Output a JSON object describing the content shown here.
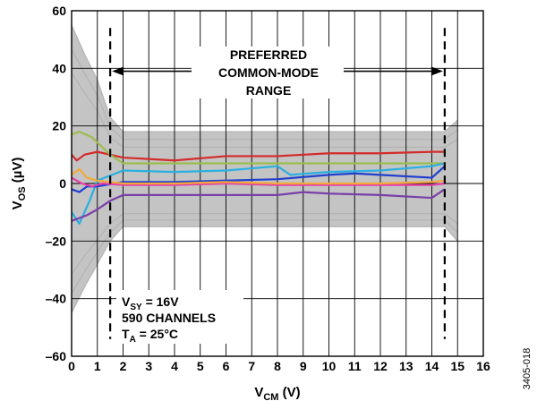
{
  "chart_data": {
    "type": "line",
    "xlabel": "V",
    "xlabel_sub": "CM",
    "xlabel_unit": " (V)",
    "ylabel": "V",
    "ylabel_sub": "OS",
    "ylabel_unit": " (µV)",
    "xlim": [
      0,
      16
    ],
    "ylim": [
      -60,
      60
    ],
    "xticks": [
      0,
      1,
      2,
      3,
      4,
      5,
      6,
      7,
      8,
      9,
      10,
      11,
      12,
      13,
      14,
      15,
      16
    ],
    "yticks": [
      -60,
      -40,
      -20,
      0,
      20,
      40,
      60
    ],
    "grid": true,
    "preferred_range": {
      "x_start": 1.5,
      "x_end": 14.5,
      "label": [
        "PREFERRED",
        "COMMON-MODE",
        "RANGE"
      ]
    },
    "conditions": {
      "line1": "V",
      "line1_sub": "SY",
      "line1_rest": " = 16V",
      "line2": "590 CHANNELS",
      "line3": "T",
      "line3_sub": "A",
      "line3_rest": " = 25°C"
    },
    "figure_id": "3405-018",
    "background_band": {
      "color": "#c4c4c4",
      "x": [
        0,
        0.5,
        1,
        1.5,
        2,
        14.5,
        15
      ],
      "upper": [
        55,
        45,
        36,
        23,
        18,
        18,
        22
      ],
      "lower": [
        -45,
        -36,
        -28,
        -20,
        -15,
        -15,
        -20
      ]
    },
    "series": [
      {
        "color": "#d42b2b",
        "x": [
          0,
          0.2,
          0.5,
          1,
          2,
          4,
          6,
          8,
          10,
          12,
          14,
          14.5
        ],
        "values": [
          10,
          8,
          10,
          11,
          9,
          8,
          9.5,
          9.5,
          10.5,
          10.5,
          11,
          11
        ]
      },
      {
        "color": "#9bbd4e",
        "x": [
          0,
          0.3,
          0.8,
          1.5,
          2,
          4,
          6,
          8,
          10,
          12,
          14,
          14.5
        ],
        "values": [
          17,
          18,
          16,
          10,
          7,
          7,
          7,
          7,
          7,
          7,
          7,
          7
        ]
      },
      {
        "color": "#2ab0e0",
        "x": [
          0,
          0.3,
          0.7,
          1,
          2,
          4,
          6,
          8,
          8.5,
          10,
          12,
          14,
          14.5
        ],
        "values": [
          -10,
          -14,
          -6,
          1,
          4.5,
          4,
          4.5,
          6,
          3,
          4,
          4.5,
          6,
          7
        ]
      },
      {
        "color": "#1f3fd0",
        "x": [
          0,
          0.3,
          0.6,
          1,
          2,
          4,
          6,
          8,
          10,
          11,
          12,
          14,
          14.5
        ],
        "values": [
          -2,
          -3,
          -1,
          -1,
          0.5,
          0.5,
          1,
          1.5,
          3,
          3.5,
          3,
          2,
          6
        ]
      },
      {
        "color": "#e53ea8",
        "x": [
          0,
          0.4,
          0.8,
          1.2,
          2,
          4,
          6,
          8,
          10,
          12,
          14,
          14.5
        ],
        "values": [
          2,
          0,
          -1,
          0,
          -0.5,
          -0.5,
          0,
          -0.5,
          -0.5,
          -0.5,
          -0.5,
          0
        ]
      },
      {
        "color": "#f2a93a",
        "x": [
          0,
          0.3,
          0.6,
          1,
          2,
          4,
          6,
          8,
          10,
          12,
          14,
          14.5
        ],
        "values": [
          3,
          5,
          2,
          1,
          0,
          0,
          0.5,
          0,
          0,
          0,
          0.5,
          1
        ]
      },
      {
        "color": "#7a3fa8",
        "x": [
          0,
          0.3,
          0.6,
          1,
          1.5,
          2,
          4,
          6,
          8,
          9,
          10,
          12,
          14,
          14.5
        ],
        "values": [
          -13,
          -12,
          -11,
          -9,
          -6,
          -4,
          -4,
          -4,
          -4,
          -3,
          -3.5,
          -4,
          -5,
          -2
        ]
      }
    ]
  }
}
